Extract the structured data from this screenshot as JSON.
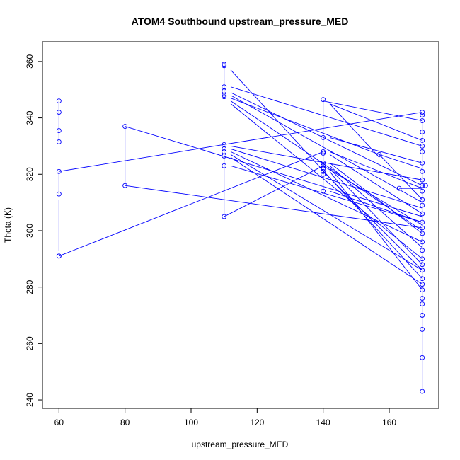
{
  "chart_data": {
    "type": "line",
    "title": "ATOM4 Southbound upstream_pressure_MED",
    "xlabel": "upstream_pressure_MED",
    "ylabel": "Theta (K)",
    "xlim": [
      55,
      175
    ],
    "ylim": [
      237,
      367
    ],
    "xticks": [
      "60",
      "80",
      "100",
      "120",
      "140",
      "160"
    ],
    "yticks": [
      "240",
      "260",
      "280",
      "300",
      "320",
      "340",
      "360"
    ],
    "grid": false,
    "marker": "open-circle",
    "series_color": "#0000ff",
    "points": [
      [
        60,
        346
      ],
      [
        60,
        342
      ],
      [
        60,
        335.5
      ],
      [
        60,
        331.5
      ],
      [
        60,
        321
      ],
      [
        60,
        313
      ],
      [
        60,
        291
      ],
      [
        60,
        291
      ],
      [
        80,
        337
      ],
      [
        80,
        316
      ],
      [
        110,
        359
      ],
      [
        110,
        358.5
      ],
      [
        110,
        351
      ],
      [
        110,
        349.5
      ],
      [
        110,
        348
      ],
      [
        110,
        347.5
      ],
      [
        110,
        330.5
      ],
      [
        110,
        329
      ],
      [
        110,
        328
      ],
      [
        110,
        326.5
      ],
      [
        110,
        323
      ],
      [
        110,
        305
      ],
      [
        140,
        346.5
      ],
      [
        140,
        333
      ],
      [
        140,
        328
      ],
      [
        140,
        327.5
      ],
      [
        140,
        324
      ],
      [
        140,
        323
      ],
      [
        140,
        322
      ],
      [
        140,
        321
      ],
      [
        140,
        320
      ],
      [
        140,
        314
      ],
      [
        157,
        327
      ],
      [
        163,
        315
      ],
      [
        170,
        342
      ],
      [
        170,
        341
      ],
      [
        170,
        339
      ],
      [
        170,
        335
      ],
      [
        170,
        332
      ],
      [
        170,
        330
      ],
      [
        170,
        328
      ],
      [
        170,
        324
      ],
      [
        170,
        321
      ],
      [
        170,
        318
      ],
      [
        170,
        316
      ],
      [
        170,
        314
      ],
      [
        170,
        311
      ],
      [
        170,
        309
      ],
      [
        170,
        306
      ],
      [
        170,
        303
      ],
      [
        170,
        301
      ],
      [
        170,
        299
      ],
      [
        170,
        296
      ],
      [
        170,
        293
      ],
      [
        170,
        290
      ],
      [
        170,
        288
      ],
      [
        170,
        286
      ],
      [
        170,
        283
      ],
      [
        170,
        281
      ],
      [
        170,
        279
      ],
      [
        170,
        276
      ],
      [
        170,
        274
      ],
      [
        170,
        270
      ],
      [
        170,
        265
      ],
      [
        170,
        255
      ],
      [
        170,
        243
      ],
      [
        171,
        316
      ]
    ],
    "segments": [
      [
        [
          60,
          346
        ],
        [
          60,
          331.5
        ]
      ],
      [
        [
          60,
          321
        ],
        [
          60,
          313
        ]
      ],
      [
        [
          60,
          311
        ],
        [
          60,
          293
        ]
      ],
      [
        [
          80,
          337
        ],
        [
          80,
          316
        ]
      ],
      [
        [
          110,
          359
        ],
        [
          110,
          347.5
        ]
      ],
      [
        [
          110,
          330.5
        ],
        [
          110,
          306
        ]
      ],
      [
        [
          140,
          346.5
        ],
        [
          140,
          314
        ]
      ],
      [
        [
          170,
          342
        ],
        [
          170,
          244
        ]
      ],
      [
        [
          60,
          321
        ],
        [
          170,
          342
        ]
      ],
      [
        [
          60,
          291
        ],
        [
          140,
          328
        ]
      ],
      [
        [
          80,
          337
        ],
        [
          170,
          305
        ]
      ],
      [
        [
          80,
          316
        ],
        [
          170,
          301
        ]
      ],
      [
        [
          110,
          305
        ],
        [
          140,
          323
        ]
      ],
      [
        [
          112,
          351
        ],
        [
          170,
          330
        ]
      ],
      [
        [
          112,
          349
        ],
        [
          170,
          316
        ]
      ],
      [
        [
          112,
          348
        ],
        [
          170,
          310
        ]
      ],
      [
        [
          112,
          347
        ],
        [
          157,
          327
        ]
      ],
      [
        [
          112,
          346
        ],
        [
          170,
          300
        ]
      ],
      [
        [
          112,
          345
        ],
        [
          170,
          290
        ]
      ],
      [
        [
          112,
          330
        ],
        [
          170,
          318
        ]
      ],
      [
        [
          112,
          329
        ],
        [
          170,
          308
        ]
      ],
      [
        [
          112,
          328
        ],
        [
          170,
          296
        ]
      ],
      [
        [
          112,
          327
        ],
        [
          170,
          286
        ]
      ],
      [
        [
          112,
          326
        ],
        [
          170,
          281
        ]
      ],
      [
        [
          112,
          323
        ],
        [
          170,
          303
        ]
      ],
      [
        [
          112,
          357
        ],
        [
          170,
          283
        ]
      ],
      [
        [
          140,
          346
        ],
        [
          170,
          339
        ]
      ],
      [
        [
          142,
          345
        ],
        [
          170,
          332
        ]
      ],
      [
        [
          142,
          333
        ],
        [
          170,
          324
        ]
      ],
      [
        [
          142,
          328
        ],
        [
          170,
          315
        ]
      ],
      [
        [
          142,
          327
        ],
        [
          170,
          306
        ]
      ],
      [
        [
          142,
          324
        ],
        [
          170,
          299
        ]
      ],
      [
        [
          142,
          323
        ],
        [
          170,
          294
        ]
      ],
      [
        [
          142,
          322
        ],
        [
          170,
          288
        ]
      ],
      [
        [
          142,
          321
        ],
        [
          170,
          279
        ]
      ],
      [
        [
          142,
          314
        ],
        [
          170,
          303
        ]
      ],
      [
        [
          142,
          345
        ],
        [
          157,
          326
        ]
      ],
      [
        [
          157,
          327
        ],
        [
          170,
          322
        ]
      ],
      [
        [
          157,
          327
        ],
        [
          170,
          311
        ]
      ],
      [
        [
          163,
          315
        ],
        [
          170,
          315
        ]
      ],
      [
        [
          140,
          323
        ],
        [
          170,
          302
        ]
      ],
      [
        [
          140,
          321
        ],
        [
          170,
          286
        ]
      ]
    ]
  }
}
